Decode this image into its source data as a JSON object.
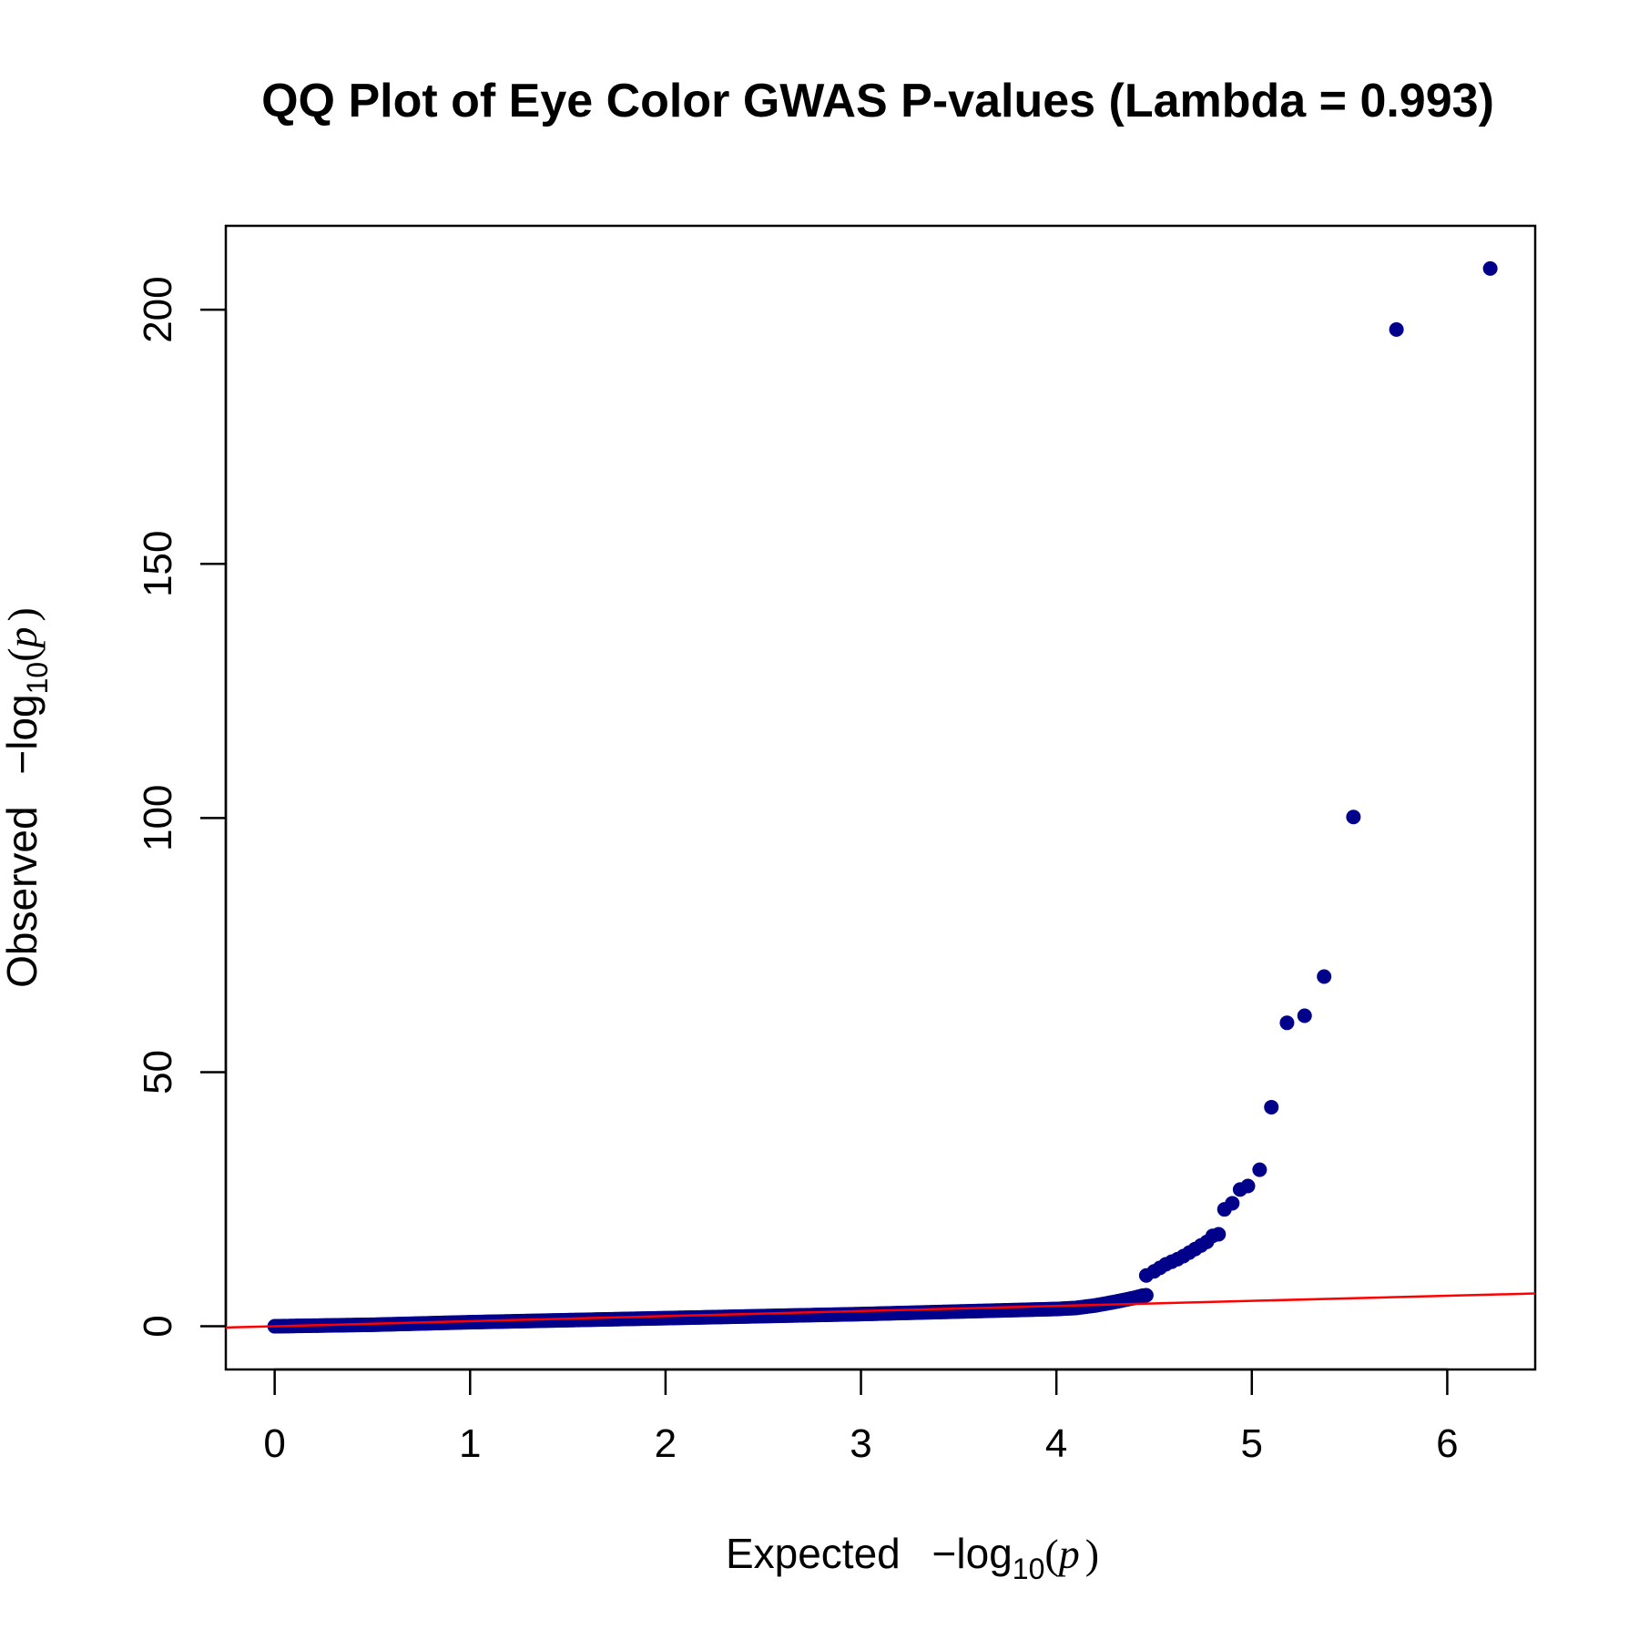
{
  "chart_data": {
    "type": "scatter",
    "title": "QQ Plot of Eye Color GWAS P-values (Lambda = 0.993)",
    "xlabel": {
      "prefix": "Expected",
      "minus": "−",
      "log": "log",
      "sub": "10",
      "open": "(",
      "var": "p",
      "close": ")"
    },
    "ylabel": {
      "prefix": "Observed",
      "minus": "−",
      "log": "log",
      "sub": "10",
      "open": "(",
      "var": "p",
      "close": ")"
    },
    "xlim": [
      -0.25,
      6.45
    ],
    "ylim": [
      -8.5,
      216.5
    ],
    "xticks": [
      0,
      1,
      2,
      3,
      4,
      5,
      6
    ],
    "xtick_labels": [
      "0",
      "1",
      "2",
      "3",
      "4",
      "5",
      "6"
    ],
    "yticks": [
      0,
      50,
      100,
      150,
      200
    ],
    "ytick_labels": [
      "0",
      "50",
      "100",
      "150",
      "200"
    ],
    "grid": false,
    "point_color": "#00008B",
    "reference_line": {
      "slope": 1,
      "intercept": 0,
      "color": "#FF0000"
    },
    "series": [
      {
        "curve": {
          "x": [
            0,
            0.5,
            1,
            1.5,
            2,
            2.5,
            3,
            3.5,
            4,
            4.1,
            4.2,
            4.3,
            4.35,
            4.4,
            4.42,
            4.44,
            4.46
          ],
          "y": [
            0,
            0.3,
            0.8,
            1.2,
            1.6,
            2.0,
            2.4,
            2.9,
            3.4,
            3.6,
            4.1,
            4.8,
            5.2,
            5.6,
            5.8,
            6.0,
            6.1
          ]
        },
        "points": {
          "x": [
            4.46,
            4.5,
            4.53,
            4.56,
            4.59,
            4.62,
            4.65,
            4.68,
            4.71,
            4.74,
            4.77,
            4.8,
            4.83,
            4.86,
            4.9,
            4.94,
            4.98,
            5.04,
            5.1,
            5.18,
            5.27,
            5.37,
            5.52,
            5.74,
            6.22
          ],
          "y": [
            10,
            10.8,
            11.5,
            12.2,
            12.7,
            13.2,
            13.8,
            14.5,
            15.2,
            15.9,
            16.6,
            17.8,
            18.1,
            23,
            24.2,
            26.9,
            27.6,
            30.8,
            43.1,
            59.7,
            61.1,
            68.8,
            100.2,
            196.1,
            208.1
          ]
        }
      }
    ]
  }
}
